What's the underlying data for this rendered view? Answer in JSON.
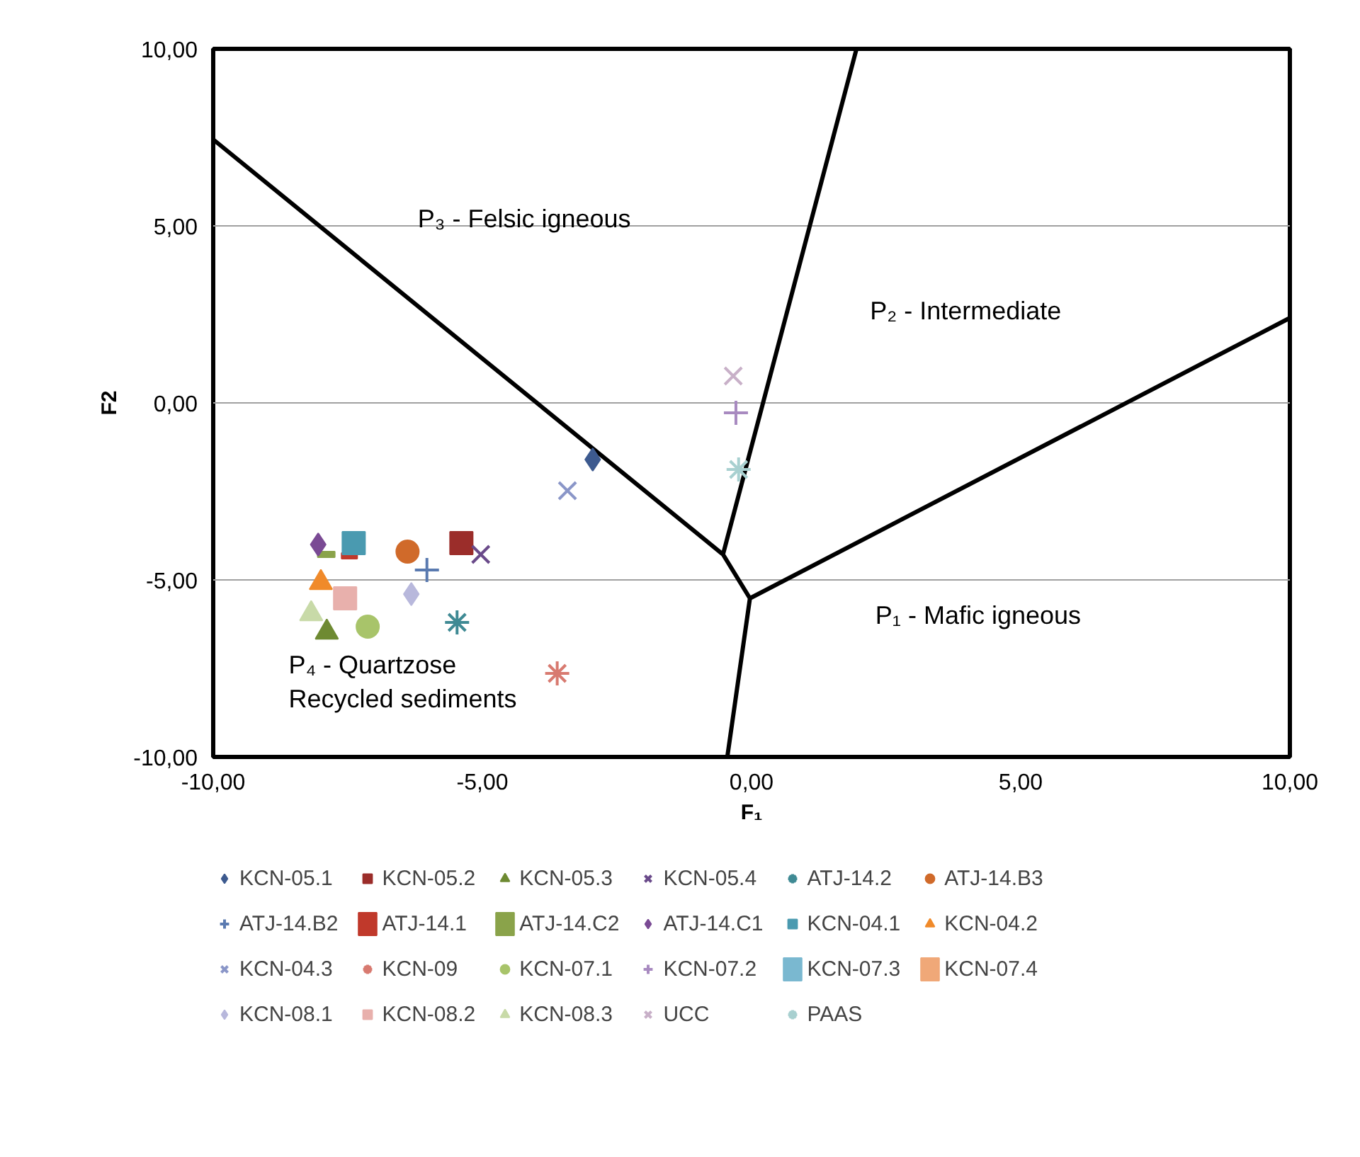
{
  "chart_data": {
    "type": "scatter",
    "xlabel": "F₁",
    "ylabel": "F2",
    "xlim": [
      -10,
      10
    ],
    "ylim": [
      -10,
      10
    ],
    "xticks": [
      {
        "value": -10,
        "label": "-10,00"
      },
      {
        "value": -5,
        "label": "-5,00"
      },
      {
        "value": 0,
        "label": "0,00"
      },
      {
        "value": 5,
        "label": "5,00"
      },
      {
        "value": 10,
        "label": "10,00"
      }
    ],
    "yticks": [
      {
        "value": -10,
        "label": "-10,00"
      },
      {
        "value": -5,
        "label": "-5,00"
      },
      {
        "value": 0,
        "label": "0,00"
      },
      {
        "value": 5,
        "label": "5,00"
      },
      {
        "value": 10,
        "label": "10,00"
      }
    ],
    "grid": "y",
    "legend": "bottom",
    "annotations": [
      "P₃ - Felsic igneous",
      "P₂ - Intermediate",
      "P₁ - Mafic igneous",
      "P₄ - Quartzose\nRecycled sediments"
    ],
    "series": [
      {
        "type": "line",
        "color": "#000000",
        "x": [
          -10,
          -0.53,
          1.95,
          null,
          -0.53,
          -0.03,
          -0.45,
          null,
          -0.03,
          10
        ],
        "values": [
          7.44,
          -4.28,
          10,
          null,
          -4.28,
          -5.52,
          -10,
          null,
          -5.52,
          2.4
        ]
      },
      {
        "name": "KCN-05.1",
        "color": "#3d5a8f",
        "x": [
          -2.95
        ],
        "values": [
          -1.6
        ]
      },
      {
        "name": "KCN-05.2",
        "color": "#9b2d2a",
        "x": [
          -5.39
        ],
        "values": [
          -3.96
        ]
      },
      {
        "name": "KCN-05.3",
        "color": "#6e8a32",
        "x": [
          -7.89
        ],
        "values": [
          -6.48
        ]
      },
      {
        "name": "KCN-05.4",
        "color": "#6a4a8a",
        "x": [
          -5.03
        ],
        "values": [
          -4.28
        ]
      },
      {
        "name": "ATJ-14.2",
        "color": "#3f8a94",
        "x": [
          -5.47
        ],
        "values": [
          -6.2
        ]
      },
      {
        "name": "ATJ-14.B3",
        "color": "#d06a2a",
        "x": [
          -6.39
        ],
        "values": [
          -4.2
        ]
      },
      {
        "name": "ATJ-14.B2",
        "color": "#5a7ab0",
        "x": [
          -6.03
        ],
        "values": [
          -4.72
        ]
      },
      {
        "name": "ATJ-14.1",
        "color": "#c0392b",
        "x": [
          -7.47
        ],
        "values": [
          -4.32
        ]
      },
      {
        "name": "ATJ-14.C2",
        "color": "#8aa34a",
        "x": [
          -7.9
        ],
        "values": [
          -4.28
        ]
      },
      {
        "name": "ATJ-14.C1",
        "color": "#7a4a94",
        "x": [
          -8.05
        ],
        "values": [
          -4.0
        ]
      },
      {
        "name": "KCN-04.1",
        "color": "#4a9ab0",
        "x": [
          -7.39
        ],
        "values": [
          -3.96
        ]
      },
      {
        "name": "KCN-04.2",
        "color": "#f08a2a",
        "x": [
          -8.0
        ],
        "values": [
          -5.08
        ]
      },
      {
        "name": "KCN-04.3",
        "color": "#8a96c8",
        "x": [
          -3.42
        ],
        "values": [
          -2.48
        ]
      },
      {
        "name": "KCN-09",
        "color": "#d87a70",
        "x": [
          -3.61
        ],
        "values": [
          -7.64
        ]
      },
      {
        "name": "KCN-07.1",
        "color": "#a8c46a",
        "x": [
          -7.13
        ],
        "values": [
          -6.32
        ]
      },
      {
        "name": "KCN-07.2",
        "color": "#a88ac0",
        "x": [
          -0.29
        ],
        "values": [
          -0.28
        ]
      },
      {
        "name": "KCN-07.3",
        "color": "#7ab8d0",
        "x": [
          null
        ],
        "values": [
          null
        ]
      },
      {
        "name": "KCN-07.4",
        "color": "#f0a878",
        "x": [
          null
        ],
        "values": [
          null
        ]
      },
      {
        "name": "KCN-08.1",
        "color": "#b8b8dc",
        "x": [
          -6.32
        ],
        "values": [
          -5.4
        ]
      },
      {
        "name": "KCN-08.2",
        "color": "#e8b0ac",
        "x": [
          -7.55
        ],
        "values": [
          -5.52
        ]
      },
      {
        "name": "KCN-08.3",
        "color": "#c8daa8",
        "x": [
          -8.18
        ],
        "values": [
          -5.96
        ]
      },
      {
        "name": "UCC",
        "color": "#c8b0c8",
        "x": [
          -0.34
        ],
        "values": [
          0.76
        ]
      },
      {
        "name": "PAAS",
        "color": "#a8d0d0",
        "x": [
          -0.24
        ],
        "values": [
          -1.88
        ]
      }
    ]
  }
}
